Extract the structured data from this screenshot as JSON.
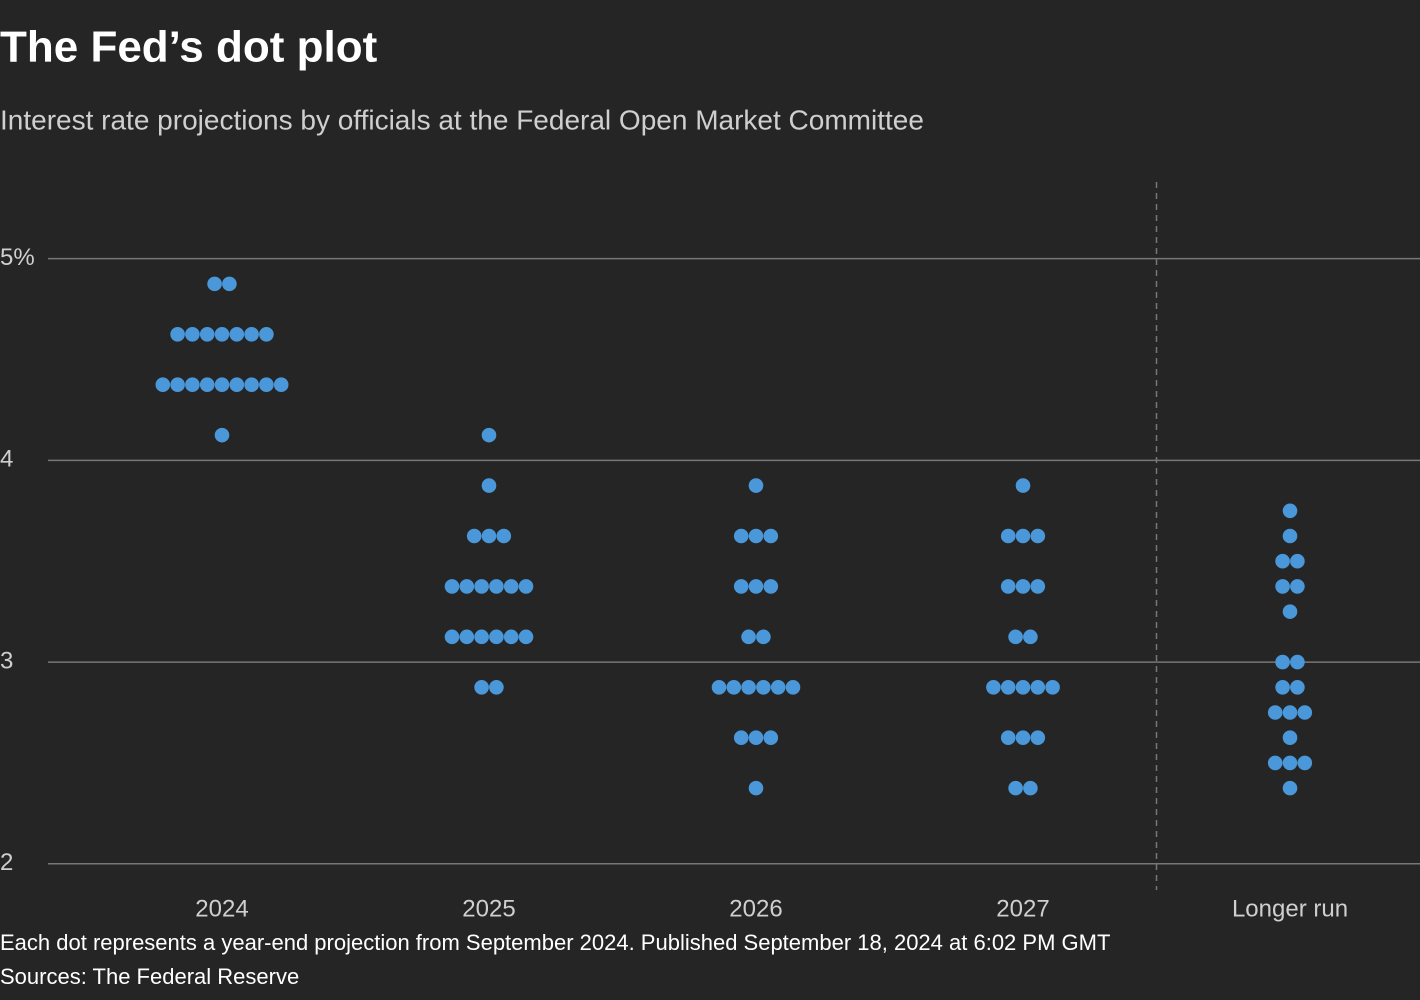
{
  "chart_data": {
    "type": "dot",
    "title": "The Fed’s dot plot",
    "subtitle": "Interest rate projections by officials at the Federal Open Market Committee",
    "categories": [
      "2024",
      "2025",
      "2026",
      "2027",
      "Longer run"
    ],
    "values": [
      [
        4.875,
        4.875,
        4.625,
        4.625,
        4.625,
        4.625,
        4.625,
        4.625,
        4.625,
        4.375,
        4.375,
        4.375,
        4.375,
        4.375,
        4.375,
        4.375,
        4.375,
        4.375,
        4.125
      ],
      [
        4.125,
        3.875,
        3.625,
        3.625,
        3.625,
        3.375,
        3.375,
        3.375,
        3.375,
        3.375,
        3.375,
        3.125,
        3.125,
        3.125,
        3.125,
        3.125,
        3.125,
        2.875,
        2.875
      ],
      [
        3.875,
        3.625,
        3.625,
        3.625,
        3.375,
        3.375,
        3.375,
        3.125,
        3.125,
        2.875,
        2.875,
        2.875,
        2.875,
        2.875,
        2.875,
        2.625,
        2.625,
        2.625,
        2.375
      ],
      [
        3.875,
        3.625,
        3.625,
        3.625,
        3.375,
        3.375,
        3.375,
        3.125,
        3.125,
        2.875,
        2.875,
        2.875,
        2.875,
        2.875,
        2.625,
        2.625,
        2.625,
        2.375,
        2.375
      ],
      [
        3.75,
        3.625,
        3.5,
        3.5,
        3.375,
        3.375,
        3.25,
        3.0,
        3.0,
        2.875,
        2.875,
        2.75,
        2.75,
        2.75,
        2.625,
        2.5,
        2.5,
        2.5,
        2.375
      ]
    ],
    "color": "#4a98d9",
    "ylim": [
      1.87,
      5.38
    ],
    "yticks": [
      {
        "value": 5,
        "label": "5%"
      },
      4,
      3,
      2
    ],
    "grid": true,
    "note": "Each dot represents a year-end projection from September 2024. Published September 18, 2024 at 6:02 PM GMT",
    "source": "Sources: The Federal Reserve"
  }
}
